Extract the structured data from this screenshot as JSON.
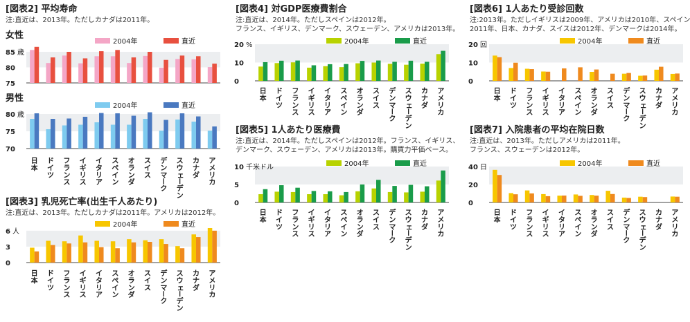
{
  "chart_data": [
    {
      "id": "fig2",
      "type": "bar",
      "title": "[図表2] 平均寿命",
      "note_lines": [
        "注:直近は、2013年。ただしカナダは2011年。"
      ],
      "categories": [
        "日本",
        "ドイツ",
        "フランス",
        "イギリス",
        "イタリア",
        "スペイン",
        "オランダ",
        "スイス",
        "デンマーク",
        "スウェーデン",
        "カナダ",
        "アメリカ"
      ],
      "panels": [
        {
          "subtitle": "女性",
          "unit": "歳",
          "yticks": [
            75,
            80,
            85
          ],
          "ylim": [
            75,
            87
          ],
          "colors": [
            "#f4a6c6",
            "#e8503f"
          ],
          "series": [
            {
              "name": "2004年",
              "values": [
                85.6,
                81.4,
                83.8,
                81.3,
                83.6,
                83.6,
                81.4,
                83.7,
                79.9,
                82.7,
                82.6,
                80.1
              ]
            },
            {
              "name": "直近",
              "values": [
                86.6,
                83.2,
                85.0,
                82.9,
                85.2,
                85.6,
                83.2,
                85.0,
                82.4,
                83.8,
                83.6,
                81.2
              ]
            }
          ]
        },
        {
          "subtitle": "男性",
          "unit": "歳",
          "yticks": [
            70,
            75,
            80
          ],
          "ylim": [
            70,
            81
          ],
          "colors": [
            "#7ecbef",
            "#4a79c0"
          ],
          "series": [
            {
              "name": "2004年",
              "values": [
                78.6,
                75.6,
                76.7,
                76.9,
                77.6,
                76.9,
                76.9,
                78.6,
                75.2,
                78.4,
                77.8,
                75.2
              ]
            },
            {
              "name": "直近",
              "values": [
                80.2,
                78.6,
                78.7,
                79.2,
                80.3,
                80.2,
                79.5,
                80.5,
                78.3,
                80.2,
                79.3,
                76.4
              ]
            }
          ]
        }
      ]
    },
    {
      "id": "fig3",
      "type": "bar",
      "title": "[図表3] 乳児死亡率(出生千人あたり)",
      "note_lines": [
        "注:直近は、2013年。ただしカナダは2011年。アメリカは2012年。"
      ],
      "categories": [
        "日本",
        "ドイツ",
        "フランス",
        "イギリス",
        "イタリア",
        "スペイン",
        "オランダ",
        "スイス",
        "デンマーク",
        "スウェーデン",
        "カナダ",
        "アメリカ"
      ],
      "unit": "人",
      "yticks": [
        0,
        3,
        6
      ],
      "ylim": [
        0,
        6.5
      ],
      "colors": [
        "#f7c600",
        "#ef8a1e"
      ],
      "series": [
        {
          "name": "2004年",
          "values": [
            2.8,
            4.1,
            4.0,
            5.1,
            4.1,
            4.0,
            4.4,
            4.2,
            4.4,
            3.1,
            5.3,
            6.8
          ]
        },
        {
          "name": "直近",
          "values": [
            2.1,
            3.3,
            3.6,
            3.8,
            2.9,
            2.7,
            3.8,
            3.9,
            3.5,
            2.7,
            4.8,
            6.0
          ]
        }
      ]
    },
    {
      "id": "fig4",
      "type": "bar",
      "title": "[図表4] 対GDP医療費割合",
      "note_lines": [
        "注:直近は、2014年。ただしスペインは2012年。",
        "フランス、イギリス、デンマーク、スウェーデン、アメリカは2013年。"
      ],
      "categories": [
        "日本",
        "ドイツ",
        "フランス",
        "イギリス",
        "イタリア",
        "スペイン",
        "オランダ",
        "スイス",
        "デンマーク",
        "スウェーデン",
        "カナダ",
        "アメリカ"
      ],
      "unit": "%",
      "yticks": [
        0,
        10,
        20
      ],
      "ylim": [
        0,
        20
      ],
      "colors": [
        "#b8d200",
        "#1a9c4a"
      ],
      "series": [
        {
          "name": "2004年",
          "values": [
            7.8,
            9.7,
            10.1,
            7.2,
            8.0,
            7.5,
            9.6,
            10.0,
            9.3,
            8.8,
            9.4,
            14.6
          ]
        },
        {
          "name": "直近",
          "values": [
            10.2,
            11.0,
            11.1,
            8.5,
            9.1,
            9.2,
            10.9,
            11.1,
            10.4,
            11.0,
            10.4,
            16.4
          ]
        }
      ]
    },
    {
      "id": "fig5",
      "type": "bar",
      "title": "[図表5] 1人あたり医療費",
      "note_lines": [
        "注:直近は、2014年。ただしスペインは2012年。フランス、イギリス、",
        "デンマーク、スウェーデン、アメリカは2013年。購買力平価ベース。"
      ],
      "categories": [
        "日本",
        "ドイツ",
        "フランス",
        "イギリス",
        "イタリア",
        "スペイン",
        "オランダ",
        "スイス",
        "デンマーク",
        "スウェーデン",
        "カナダ",
        "アメリカ"
      ],
      "unit": "千米ドル",
      "yticks": [
        0,
        5,
        10
      ],
      "ylim": [
        0,
        10
      ],
      "colors": [
        "#b8d200",
        "#1a9c4a"
      ],
      "series": [
        {
          "name": "2004年",
          "values": [
            2.3,
            3.0,
            2.9,
            2.3,
            2.3,
            2.0,
            3.1,
            3.9,
            2.9,
            2.8,
            3.0,
            6.1
          ]
        },
        {
          "name": "直近",
          "values": [
            3.7,
            4.8,
            4.1,
            3.2,
            3.1,
            2.9,
            5.0,
            6.3,
            4.6,
            4.9,
            4.5,
            8.9
          ]
        }
      ]
    },
    {
      "id": "fig6",
      "type": "bar",
      "title": "[図表6] 1人あたり受診回数",
      "note_lines": [
        "注:2013年。ただしイギリスは2009年、アメリカは2010年、スペインは",
        "2011年、日本、カナダ、スイスは2012年、デンマークは2014年。"
      ],
      "categories": [
        "日本",
        "ドイツ",
        "フランス",
        "イギリス",
        "イタリア",
        "スペイン",
        "オランダ",
        "スイス",
        "デンマーク",
        "スウェーデン",
        "カナダ",
        "アメリカ"
      ],
      "unit": "回",
      "yticks": [
        0,
        10,
        20
      ],
      "ylim": [
        0,
        20
      ],
      "colors": [
        "#f7c600",
        "#ef8a1e"
      ],
      "series": [
        {
          "name": "2004年",
          "values": [
            13.8,
            7.0,
            6.6,
            5.1,
            0,
            0,
            4.9,
            0,
            3.9,
            2.8,
            6.1,
            3.8
          ]
        },
        {
          "name": "直近",
          "values": [
            12.9,
            9.9,
            6.4,
            5.0,
            6.8,
            7.4,
            6.2,
            3.9,
            4.3,
            2.9,
            7.7,
            4.0
          ]
        }
      ]
    },
    {
      "id": "fig7",
      "type": "bar",
      "title": "[図表7] 入院患者の平均在院日数",
      "note_lines": [
        "注:直近は、2013年。ただしアメリカは2011年。",
        "フランス、スウェーデンは2012年。"
      ],
      "categories": [
        "日本",
        "ドイツ",
        "フランス",
        "イギリス",
        "イタリア",
        "スペイン",
        "オランダ",
        "スイス",
        "デンマーク",
        "スウェーデン",
        "カナダ",
        "アメリカ"
      ],
      "unit": "日",
      "yticks": [
        0,
        20,
        40
      ],
      "ylim": [
        0,
        40
      ],
      "colors": [
        "#f7c600",
        "#ef8a1e"
      ],
      "series": [
        {
          "name": "2004年",
          "values": [
            36.3,
            10.4,
            13.4,
            9.3,
            7.6,
            8.9,
            8.3,
            13.0,
            5.4,
            6.4,
            0,
            6.6
          ]
        },
        {
          "name": "直近",
          "values": [
            30.6,
            9.1,
            10.1,
            7.0,
            7.7,
            7.4,
            7.6,
            9.4,
            5.0,
            6.0,
            0,
            6.4
          ]
        }
      ]
    }
  ]
}
